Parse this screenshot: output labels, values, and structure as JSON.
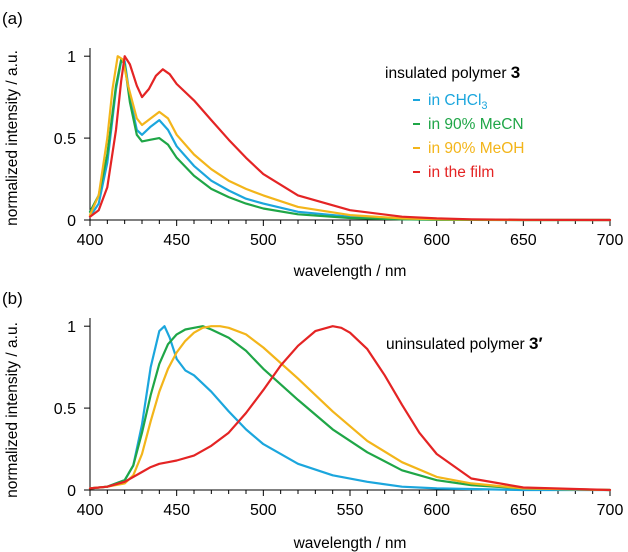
{
  "chart_data": [
    {
      "panel_label": "(a)",
      "type": "line",
      "xlabel": "wavelength / nm",
      "ylabel": "normalized intensity / a.u.",
      "xlim": [
        400,
        700
      ],
      "ylim": [
        0,
        1.05
      ],
      "xticks": [
        400,
        450,
        500,
        550,
        600,
        650,
        700
      ],
      "yticks": [
        0,
        0.5,
        1
      ],
      "ytick_labels": [
        "0",
        "0.5",
        "1"
      ],
      "legend_title_prefix": "insulated polymer",
      "legend_title_bold": "3",
      "legend_position": "top-right",
      "series": [
        {
          "name_prefix": "in CHCl",
          "name_sub": "3",
          "color": "#1ba6dd",
          "x": [
            400,
            405,
            410,
            415,
            418,
            420,
            423,
            427,
            430,
            435,
            440,
            445,
            450,
            460,
            470,
            480,
            490,
            500,
            520,
            550,
            580,
            600,
            650,
            700
          ],
          "y": [
            0.02,
            0.1,
            0.35,
            0.8,
            0.97,
            0.97,
            0.75,
            0.55,
            0.52,
            0.57,
            0.61,
            0.55,
            0.45,
            0.33,
            0.24,
            0.18,
            0.13,
            0.1,
            0.05,
            0.02,
            0.005,
            0.002,
            0,
            0
          ]
        },
        {
          "name": "in 90% MeCN",
          "color": "#1fa647",
          "x": [
            400,
            405,
            410,
            415,
            418,
            420,
            423,
            427,
            430,
            435,
            440,
            445,
            450,
            460,
            470,
            480,
            490,
            500,
            520,
            550,
            580,
            600,
            650,
            700
          ],
          "y": [
            0.05,
            0.15,
            0.4,
            0.82,
            0.98,
            0.95,
            0.72,
            0.52,
            0.48,
            0.49,
            0.5,
            0.46,
            0.38,
            0.27,
            0.19,
            0.14,
            0.1,
            0.07,
            0.035,
            0.012,
            0.004,
            0.001,
            0,
            0
          ]
        },
        {
          "name": "in 90% MeOH",
          "color": "#f3b51a",
          "x": [
            400,
            405,
            410,
            413,
            416,
            419,
            422,
            427,
            430,
            435,
            440,
            445,
            450,
            460,
            470,
            480,
            490,
            500,
            520,
            550,
            580,
            600,
            650,
            700
          ],
          "y": [
            0.03,
            0.15,
            0.5,
            0.8,
            1.0,
            0.98,
            0.82,
            0.62,
            0.58,
            0.62,
            0.66,
            0.62,
            0.52,
            0.4,
            0.31,
            0.24,
            0.19,
            0.15,
            0.08,
            0.03,
            0.01,
            0.004,
            0,
            0
          ]
        },
        {
          "name": "in the film",
          "color": "#e42424",
          "x": [
            400,
            405,
            410,
            415,
            418,
            420,
            423,
            427,
            430,
            434,
            438,
            442,
            446,
            450,
            460,
            470,
            480,
            490,
            500,
            520,
            550,
            580,
            600,
            620,
            650,
            700
          ],
          "y": [
            0.02,
            0.06,
            0.2,
            0.55,
            0.85,
            1.0,
            0.95,
            0.82,
            0.75,
            0.8,
            0.88,
            0.92,
            0.89,
            0.83,
            0.73,
            0.61,
            0.49,
            0.38,
            0.28,
            0.15,
            0.06,
            0.02,
            0.01,
            0.004,
            0.001,
            0
          ]
        }
      ]
    },
    {
      "panel_label": "(b)",
      "type": "line",
      "xlabel": "wavelength / nm",
      "ylabel": "normalized intensity / a.u.",
      "xlim": [
        400,
        700
      ],
      "ylim": [
        0,
        1.05
      ],
      "xticks": [
        400,
        450,
        500,
        550,
        600,
        650,
        700
      ],
      "yticks": [
        0,
        0.5,
        1
      ],
      "ytick_labels": [
        "0",
        "0.5",
        "1"
      ],
      "legend_title_prefix": "uninsulated polymer",
      "legend_title_bold": "3′",
      "legend_position": "top-right",
      "series": [
        {
          "color": "#1ba6dd",
          "x": [
            400,
            410,
            420,
            425,
            430,
            435,
            440,
            443,
            446,
            450,
            455,
            460,
            470,
            480,
            490,
            500,
            520,
            540,
            560,
            580,
            600,
            650,
            700
          ],
          "y": [
            0.01,
            0.02,
            0.06,
            0.15,
            0.4,
            0.75,
            0.97,
            1.0,
            0.93,
            0.8,
            0.73,
            0.7,
            0.6,
            0.48,
            0.37,
            0.28,
            0.16,
            0.09,
            0.05,
            0.02,
            0.01,
            0,
            0
          ]
        },
        {
          "color": "#1fa647",
          "x": [
            400,
            410,
            420,
            425,
            430,
            435,
            440,
            445,
            450,
            455,
            460,
            465,
            470,
            480,
            490,
            500,
            520,
            540,
            560,
            580,
            600,
            620,
            650,
            700
          ],
          "y": [
            0.01,
            0.02,
            0.06,
            0.15,
            0.35,
            0.58,
            0.77,
            0.89,
            0.95,
            0.98,
            0.99,
            1.0,
            0.98,
            0.93,
            0.85,
            0.74,
            0.55,
            0.37,
            0.23,
            0.12,
            0.06,
            0.03,
            0.01,
            0
          ]
        },
        {
          "color": "#f3b51a",
          "x": [
            400,
            410,
            420,
            425,
            430,
            435,
            440,
            445,
            450,
            455,
            460,
            465,
            470,
            475,
            480,
            490,
            500,
            520,
            540,
            560,
            580,
            600,
            620,
            650,
            700
          ],
          "y": [
            0.01,
            0.02,
            0.04,
            0.09,
            0.22,
            0.42,
            0.6,
            0.74,
            0.84,
            0.91,
            0.96,
            0.99,
            1.0,
            1.0,
            0.99,
            0.95,
            0.87,
            0.68,
            0.48,
            0.3,
            0.17,
            0.08,
            0.04,
            0.01,
            0
          ]
        },
        {
          "color": "#e42424",
          "x": [
            400,
            410,
            420,
            430,
            435,
            440,
            445,
            450,
            460,
            470,
            480,
            490,
            500,
            510,
            520,
            530,
            540,
            545,
            550,
            560,
            570,
            580,
            590,
            600,
            620,
            650,
            700
          ],
          "y": [
            0.01,
            0.02,
            0.05,
            0.11,
            0.14,
            0.16,
            0.17,
            0.18,
            0.21,
            0.27,
            0.35,
            0.47,
            0.61,
            0.76,
            0.88,
            0.97,
            1.0,
            0.99,
            0.96,
            0.86,
            0.7,
            0.52,
            0.35,
            0.22,
            0.07,
            0.015,
            0
          ]
        }
      ]
    }
  ]
}
